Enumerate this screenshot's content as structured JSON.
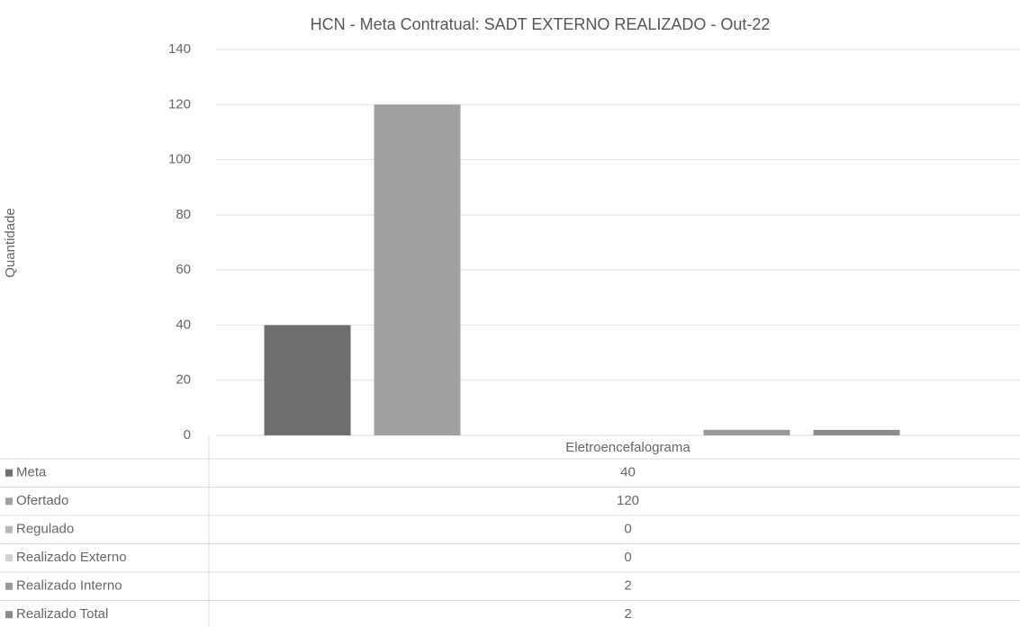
{
  "chart_data": {
    "type": "bar",
    "title": "HCN - Meta Contratual: SADT EXTERNO REALIZADO - Out-22",
    "y_label": "Quantidade",
    "categories": [
      "Eletroencefalograma"
    ],
    "series": [
      {
        "name": "Meta",
        "color": "#6f6f6f",
        "values": [
          40
        ]
      },
      {
        "name": "Ofertado",
        "color": "#a0a0a0",
        "values": [
          120
        ]
      },
      {
        "name": "Regulado",
        "color": "#b8b8b8",
        "values": [
          0
        ]
      },
      {
        "name": "Realizado Externo",
        "color": "#d2d2d2",
        "values": [
          0
        ]
      },
      {
        "name": "Realizado Interno",
        "color": "#9a9a9a",
        "values": [
          2
        ]
      },
      {
        "name": "Realizado Total",
        "color": "#8c8c8c",
        "values": [
          2
        ]
      }
    ],
    "ylim": [
      0,
      140
    ],
    "yticks": [
      0,
      20,
      40,
      60,
      80,
      100,
      120,
      140
    ],
    "grid": true,
    "data_table": true
  }
}
